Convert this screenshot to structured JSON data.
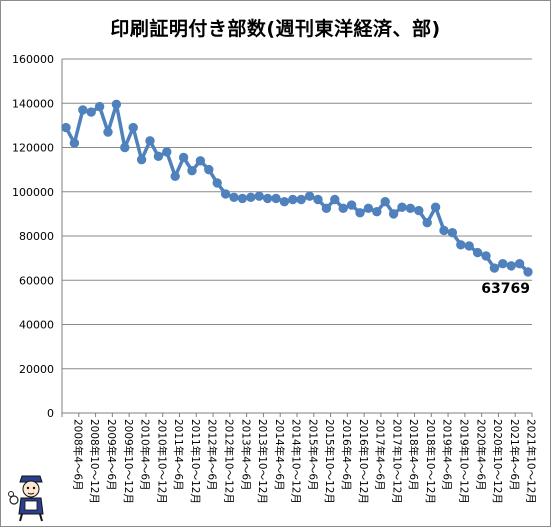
{
  "chart_data": {
    "type": "line",
    "title": "印刷証明付き部数(週刊東洋経済、部)",
    "xlabel": "",
    "ylabel": "",
    "ylim": [
      0,
      160000
    ],
    "yticks": [
      "0",
      "20000",
      "40000",
      "60000",
      "80000",
      "100000",
      "120000",
      "140000",
      "160000"
    ],
    "x_labels": [
      "2008年4～6月",
      "2008年10～12月",
      "2009年4～6月",
      "2009年10～12月",
      "2010年4～6月",
      "2010年10～12月",
      "2011年4～6月",
      "2011年10～12月",
      "2012年4～6月",
      "2012年10～12月",
      "2013年4～6月",
      "2013年10～12月",
      "2014年4～6月",
      "2014年10～12月",
      "2015年4～6月",
      "2015年10～12月",
      "2016年4～6月",
      "2016年10～12月",
      "2017年4～6月",
      "2017年10～12月",
      "2018年4～6月",
      "2018年10～12月",
      "2019年4～6月",
      "2019年10～12月",
      "2020年4～6月",
      "2020年10～12月",
      "2021年4～6月",
      "2021年10～12月"
    ],
    "grid": true,
    "legend": "none",
    "series": [
      {
        "color": "#4f81bd",
        "values": [
          129000,
          122000,
          137000,
          136000,
          138500,
          127000,
          139500,
          120000,
          129000,
          114500,
          123000,
          116000,
          118000,
          107000,
          115500,
          109500,
          114000,
          110000,
          104000,
          99000,
          97500,
          97000,
          97500,
          98000,
          97000,
          97000,
          95500,
          96500,
          96500,
          98000,
          96500,
          92500,
          96500,
          92500,
          94000,
          90500,
          92500,
          91000,
          95500,
          90000,
          93000,
          92500,
          91500,
          86000,
          93000,
          82500,
          81500,
          76000,
          75500,
          72500,
          71000,
          65500,
          67500,
          66500,
          67500,
          63769
        ]
      }
    ],
    "annotations": [
      {
        "text": "63769",
        "point_index": 55
      }
    ]
  }
}
